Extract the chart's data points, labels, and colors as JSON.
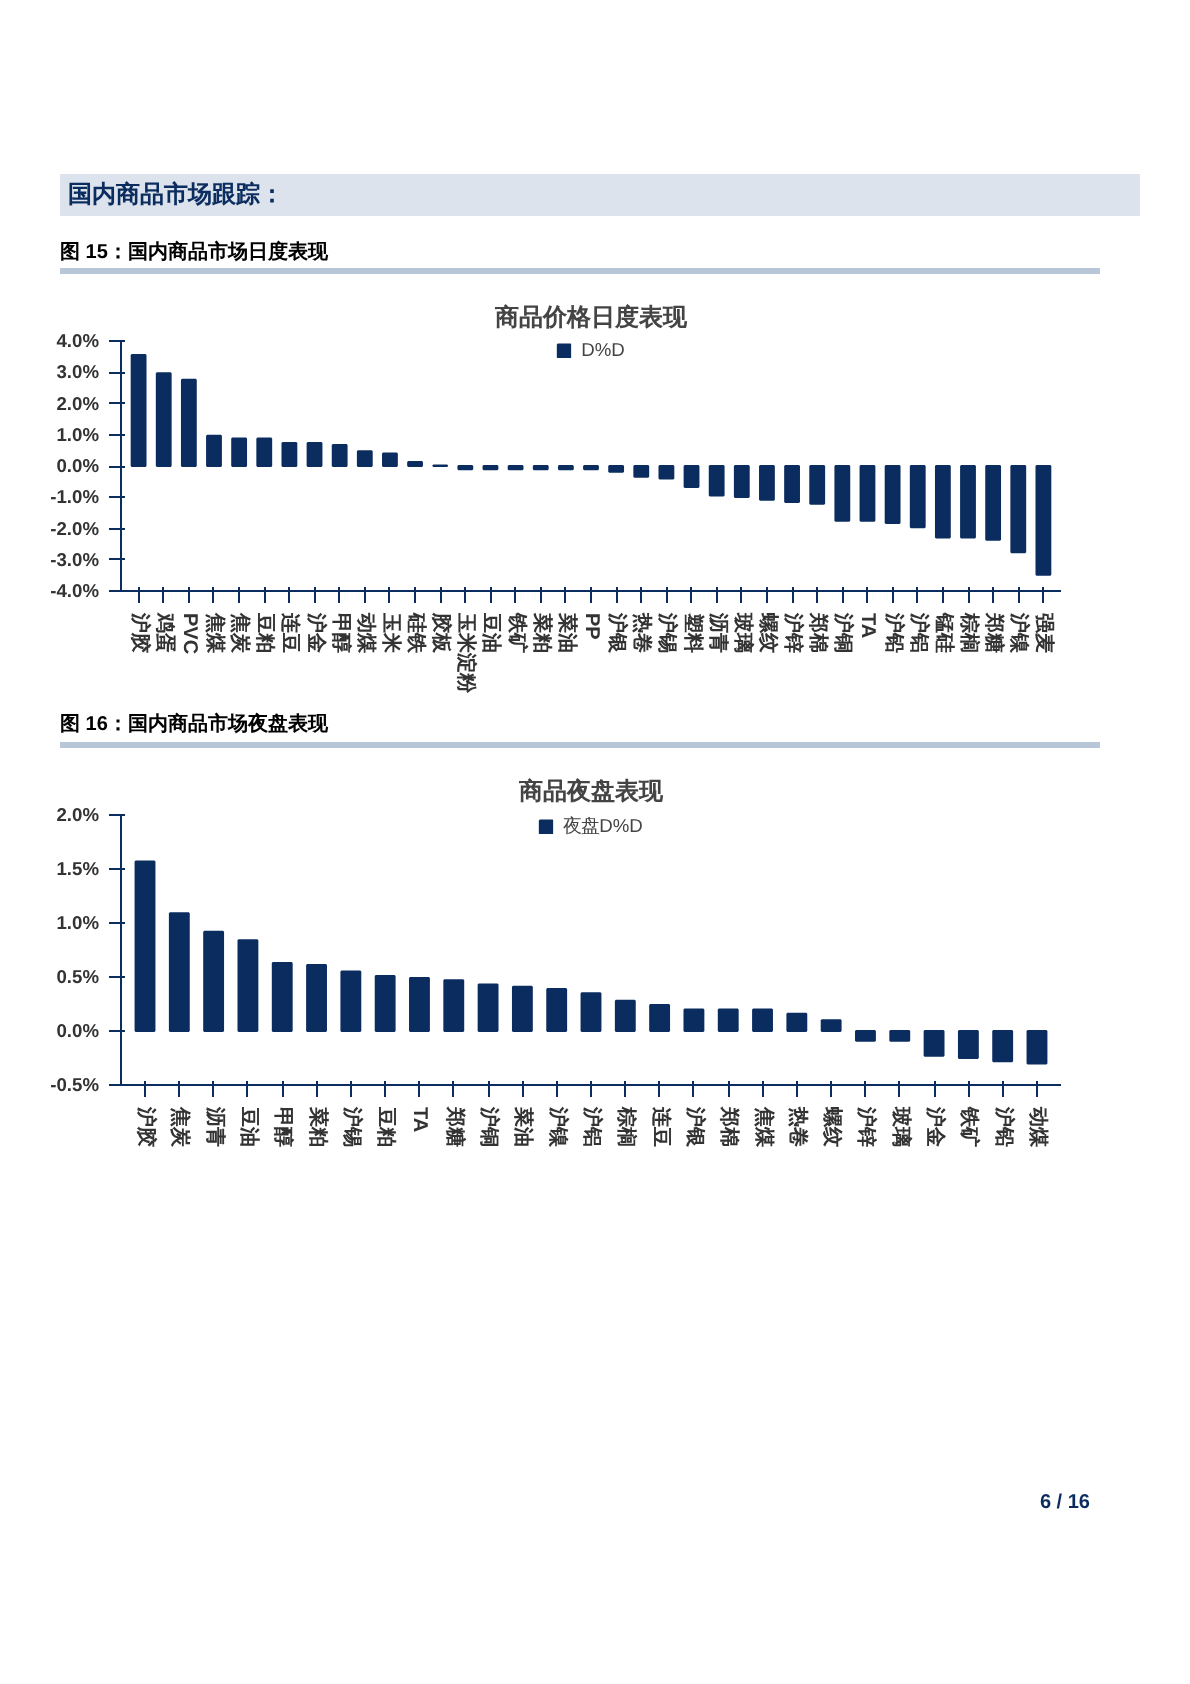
{
  "chart_data": [
    {
      "type": "bar",
      "title": "图 15：国内商品市场日度表现",
      "subtitle": "商品价格日度表现",
      "annotations": [
        "国内商品市场跟踪：",
        "6 / 16"
      ],
      "categories": [
        "沪胶",
        "鸡蛋",
        "PVC",
        "焦煤",
        "焦炭",
        "豆粕",
        "连豆",
        "沪金",
        "甲醇",
        "动煤",
        "玉米",
        "硅铁",
        "胶板",
        "玉米淀粉",
        "豆油",
        "铁矿",
        "菜粕",
        "菜油",
        "PP",
        "沪银",
        "热卷",
        "沪锡",
        "塑料",
        "沥青",
        "玻璃",
        "螺纹",
        "沪锌",
        "郑棉",
        "沪铜",
        "TA",
        "沪铅",
        "沪铝",
        "锰硅",
        "棕榈",
        "郑糖",
        "沪镍",
        "强麦"
      ],
      "series": [
        {
          "name": "D%D",
          "color": "#0b2c5f",
          "values": [
            3.55,
            2.97,
            2.76,
            0.97,
            0.88,
            0.88,
            0.74,
            0.74,
            0.67,
            0.47,
            0.4,
            0.13,
            0.02,
            -0.1,
            -0.1,
            -0.1,
            -0.1,
            -0.1,
            -0.1,
            -0.18,
            -0.34,
            -0.4,
            -0.67,
            -0.94,
            -0.99,
            -1.08,
            -1.15,
            -1.21,
            -1.75,
            -1.75,
            -1.82,
            -1.96,
            -2.29,
            -2.29,
            -2.36,
            -2.76,
            -3.48
          ]
        }
      ],
      "ylim": [
        -4,
        4
      ],
      "yticks": [
        {
          "value": -4,
          "label": "-4.0%"
        },
        {
          "value": -3,
          "label": "-3.0%"
        },
        {
          "value": -2,
          "label": "-2.0%"
        },
        {
          "value": -1,
          "label": "-1.0%"
        },
        {
          "value": 0,
          "label": "0.0%"
        },
        {
          "value": 1,
          "label": "1.0%"
        },
        {
          "value": 2,
          "label": "2.0%"
        },
        {
          "value": 3,
          "label": "3.0%"
        },
        {
          "value": 4,
          "label": "4.0%"
        }
      ],
      "grid": false,
      "legend": "top"
    },
    {
      "type": "bar",
      "title": "图 16：国内商品市场夜盘表现",
      "subtitle": "商品夜盘表现",
      "categories": [
        "沪胶",
        "焦炭",
        "沥青",
        "豆油",
        "甲醇",
        "菜粕",
        "沪锡",
        "豆粕",
        "TA",
        "郑糖",
        "沪铜",
        "菜油",
        "沪镍",
        "沪铝",
        "棕榈",
        "连豆",
        "沪银",
        "郑棉",
        "焦煤",
        "热卷",
        "螺纹",
        "沪锌",
        "玻璃",
        "沪金",
        "铁矿",
        "沪铅",
        "动煤"
      ],
      "series": [
        {
          "name": "夜盘D%D",
          "color": "#0b2c5f",
          "values": [
            1.57,
            1.09,
            0.92,
            0.84,
            0.63,
            0.61,
            0.55,
            0.51,
            0.49,
            0.47,
            0.43,
            0.41,
            0.39,
            0.35,
            0.28,
            0.24,
            0.2,
            0.2,
            0.2,
            0.16,
            0.1,
            -0.09,
            -0.09,
            -0.23,
            -0.25,
            -0.28,
            -0.3
          ]
        }
      ],
      "ylim": [
        -0.5,
        2
      ],
      "yticks": [
        {
          "value": -0.5,
          "label": "-0.5%"
        },
        {
          "value": 0,
          "label": "0.0%"
        },
        {
          "value": 0.5,
          "label": "0.5%"
        },
        {
          "value": 1,
          "label": "1.0%"
        },
        {
          "value": 1.5,
          "label": "1.5%"
        },
        {
          "value": 2,
          "label": "2.0%"
        }
      ],
      "grid": false,
      "legend": "top"
    }
  ]
}
